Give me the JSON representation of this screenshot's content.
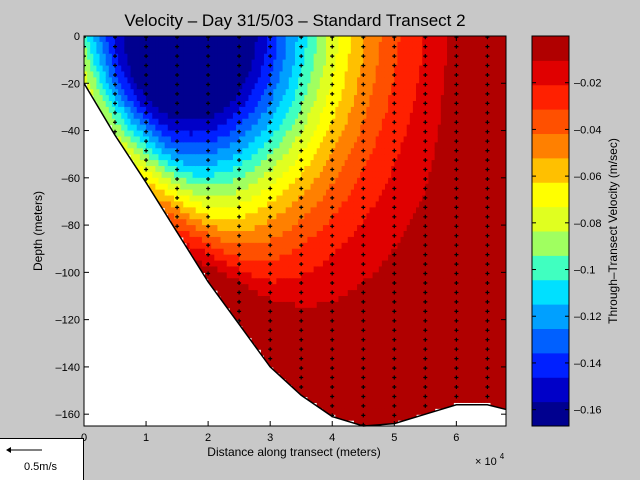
{
  "chart_data": {
    "type": "heatmap",
    "title": "Velocity – Day 31/5/03 – Standard Transect 2",
    "xlabel": "Distance along transect (meters)",
    "ylabel": "Depth (meters)",
    "x_multiplier": "× 10",
    "x_multiplier_exp": "4",
    "xlim": [
      0,
      68000
    ],
    "ylim": [
      -165,
      0
    ],
    "x_ticks": [
      0,
      1,
      2,
      3,
      4,
      5,
      6
    ],
    "y_ticks": [
      0,
      -20,
      -40,
      -60,
      -80,
      -100,
      -120,
      -140,
      -160
    ],
    "colorbar": {
      "label": "Through–Transect Velocity (m/sec)",
      "range": [
        -0.167,
        0.0
      ],
      "ticks": [
        -0.02,
        -0.04,
        -0.06,
        -0.08,
        -0.1,
        -0.12,
        -0.14,
        -0.16
      ],
      "tick_labels": [
        "–0.02",
        "–0.04",
        "–0.06",
        "–0.08",
        "–0.1",
        "–0.12",
        "–0.14",
        "–0.16"
      ],
      "colors": [
        "#00008f",
        "#0000c8",
        "#0020ff",
        "#0060ff",
        "#00a0ff",
        "#00e0ff",
        "#40ffc0",
        "#a0ff60",
        "#e0ff20",
        "#ffff00",
        "#ffc000",
        "#ff8000",
        "#ff5000",
        "#ff2000",
        "#e00000",
        "#b00000"
      ]
    },
    "bottom_profile": [
      [
        0,
        -20
      ],
      [
        5000,
        -42
      ],
      [
        10000,
        -62
      ],
      [
        15000,
        -83
      ],
      [
        20000,
        -104
      ],
      [
        25000,
        -122
      ],
      [
        30000,
        -140
      ],
      [
        35000,
        -152
      ],
      [
        40000,
        -161
      ],
      [
        45000,
        -165
      ],
      [
        50000,
        -164
      ],
      [
        55000,
        -160
      ],
      [
        60000,
        -156
      ],
      [
        65000,
        -156
      ],
      [
        68000,
        -158
      ]
    ],
    "stations_x": [
      0,
      5000,
      10000,
      15000,
      20000,
      25000,
      30000,
      35000,
      40000,
      45000,
      50000,
      55000,
      60000,
      65000
    ],
    "velocity_core": {
      "x": 15000,
      "depth": -5,
      "min_velocity": -0.165
    },
    "secondary_low": {
      "x": 54000,
      "depth": -150,
      "velocity": -0.005
    },
    "scale_arrow": "0.5m/s"
  }
}
